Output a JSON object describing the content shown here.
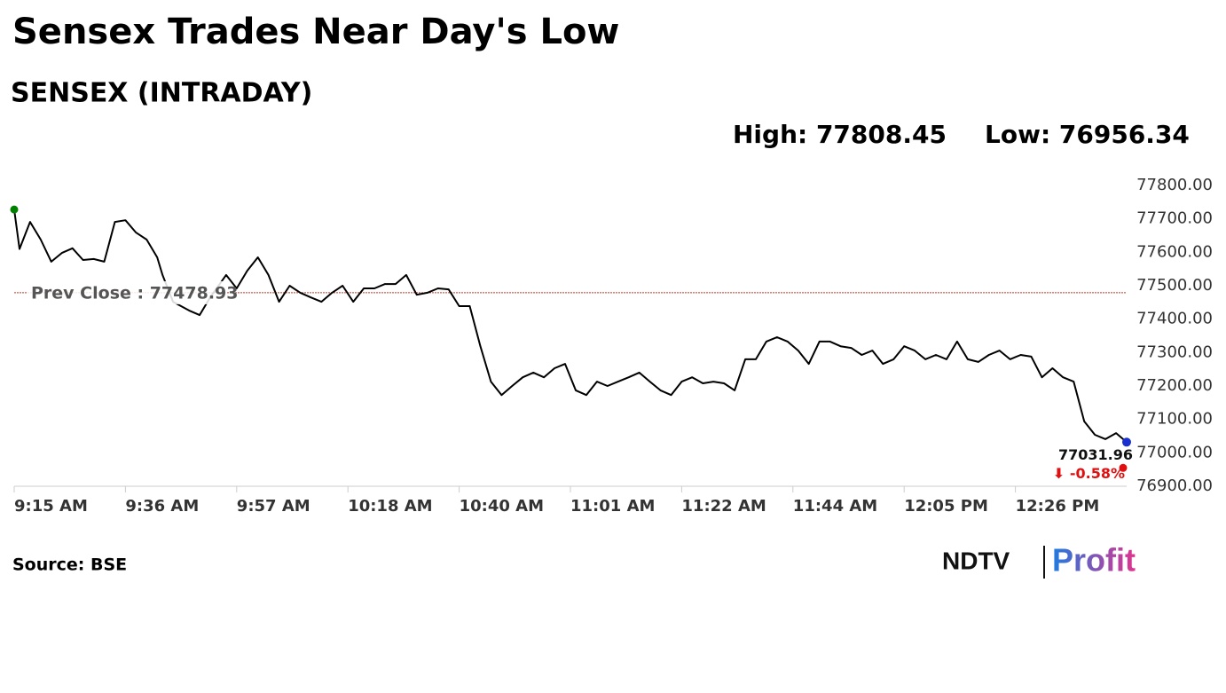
{
  "chart_data": {
    "type": "line",
    "title": "Sensex Trades Near Day's Low",
    "subtitle": "SENSEX (INTRADAY)",
    "high_label": "High: 77808.45",
    "low_label": "Low: 76956.34",
    "source": "Source: BSE",
    "logo": {
      "left": "NDTV",
      "right": "Profit"
    },
    "color": "#000000",
    "prev_close": {
      "value": 77478.93,
      "label": "Prev Close : 77478.93",
      "color": "#c0392b"
    },
    "last_label": "77031.96",
    "change_label": "⬇ -0.58%",
    "x": [
      0,
      1,
      3,
      5,
      7,
      9,
      11,
      13,
      15,
      17,
      19,
      21,
      23,
      25,
      27,
      28,
      30,
      33,
      35,
      37,
      40,
      42,
      44,
      46,
      48,
      50,
      52,
      54,
      56,
      58,
      60,
      62,
      64,
      66,
      68,
      70,
      72,
      74,
      76,
      78,
      80,
      82,
      84,
      86,
      88,
      90,
      92,
      94,
      96,
      98,
      100,
      102,
      104,
      106,
      108,
      110,
      112,
      114,
      116,
      118,
      120,
      122,
      124,
      126,
      128,
      130,
      132,
      134,
      136,
      138,
      140,
      142,
      144,
      146,
      148,
      150,
      152,
      154,
      156,
      158,
      160,
      162,
      164,
      166,
      168,
      170,
      172,
      174,
      176,
      178,
      180,
      182,
      184,
      186,
      188,
      190,
      192,
      194,
      196,
      198,
      200,
      202,
      204,
      206,
      208,
      210
    ],
    "values": [
      77728,
      77610,
      77691,
      77638,
      77572,
      77598,
      77612,
      77577,
      77580,
      77572,
      77691,
      77696,
      77659,
      77638,
      77585,
      77532,
      77452,
      77426,
      77412,
      77465,
      77532,
      77492,
      77545,
      77585,
      77532,
      77452,
      77500,
      77479,
      77465,
      77452,
      77479,
      77500,
      77452,
      77492,
      77492,
      77505,
      77505,
      77532,
      77473,
      77479,
      77492,
      77489,
      77439,
      77439,
      77319,
      77213,
      77173,
      77200,
      77226,
      77240,
      77226,
      77253,
      77266,
      77187,
      77173,
      77213,
      77200,
      77213,
      77226,
      77240,
      77213,
      77187,
      77173,
      77213,
      77226,
      77208,
      77213,
      77208,
      77187,
      77280,
      77280,
      77333,
      77346,
      77333,
      77306,
      77266,
      77333,
      77333,
      77319,
      77314,
      77293,
      77306,
      77266,
      77280,
      77319,
      77306,
      77280,
      77293,
      77280,
      77333,
      77280,
      77272,
      77293,
      77306,
      77280,
      77293,
      77288,
      77226,
      77253,
      77226,
      77213,
      77094,
      77054,
      77041,
      77059,
      77031.96
    ],
    "xlim": [
      0,
      210
    ],
    "xticks": [
      {
        "value": 0,
        "label": "9:15 AM"
      },
      {
        "value": 21,
        "label": "9:36 AM"
      },
      {
        "value": 42,
        "label": "9:57 AM"
      },
      {
        "value": 63,
        "label": "10:18 AM"
      },
      {
        "value": 84,
        "label": "10:40 AM"
      },
      {
        "value": 105,
        "label": "11:01 AM"
      },
      {
        "value": 126,
        "label": "11:22 AM"
      },
      {
        "value": 147,
        "label": "11:44 AM"
      },
      {
        "value": 168,
        "label": "12:05 PM"
      },
      {
        "value": 189,
        "label": "12:26 PM"
      }
    ],
    "ylim": [
      76900,
      77800
    ],
    "yticks": [
      {
        "value": 77800,
        "label": "77800.00"
      },
      {
        "value": 77700,
        "label": "77700.00"
      },
      {
        "value": 77600,
        "label": "77600.00"
      },
      {
        "value": 77500,
        "label": "77500.00"
      },
      {
        "value": 77400,
        "label": "77400.00"
      },
      {
        "value": 77300,
        "label": "77300.00"
      },
      {
        "value": 77200,
        "label": "77200.00"
      },
      {
        "value": 77100,
        "label": "77100.00"
      },
      {
        "value": 77000,
        "label": "77000.00"
      },
      {
        "value": 76900,
        "label": "76900.00"
      }
    ]
  }
}
